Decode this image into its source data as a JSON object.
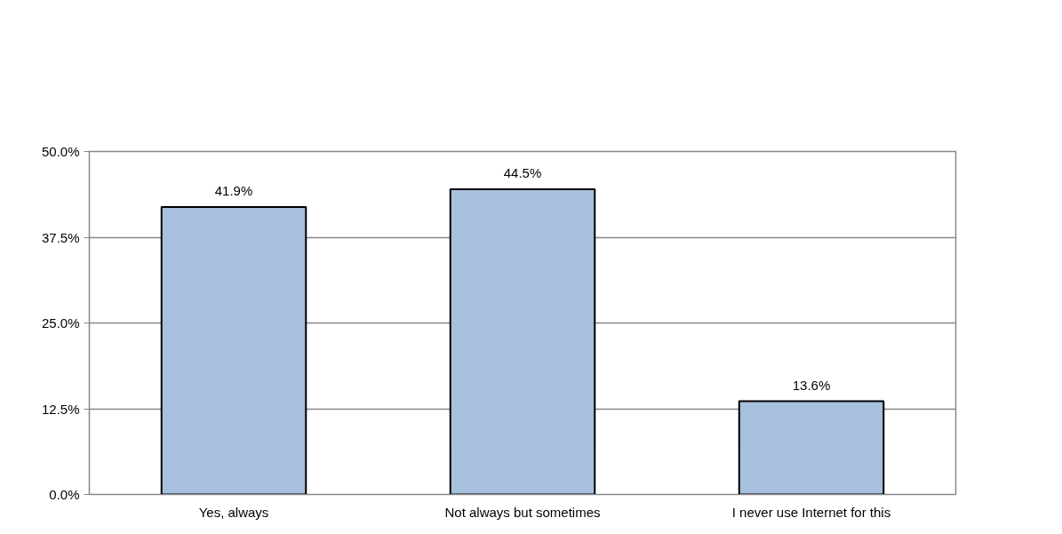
{
  "chart_data": {
    "type": "bar",
    "categories": [
      "Yes, always",
      "Not always but sometimes",
      "I never use Internet for this"
    ],
    "values": [
      41.9,
      44.5,
      13.6
    ],
    "color": "#a7c0de",
    "value_labels": [
      "41.9%",
      "44.5%",
      "13.6%"
    ],
    "ylim": [
      0,
      50
    ],
    "yticks": [
      {
        "value": 0,
        "label": "0.0%"
      },
      {
        "value": 12.5,
        "label": "12.5%"
      },
      {
        "value": 25,
        "label": "25.0%"
      },
      {
        "value": 37.5,
        "label": "37.5%"
      },
      {
        "value": 50,
        "label": "50.0%"
      }
    ],
    "grid": "y"
  }
}
